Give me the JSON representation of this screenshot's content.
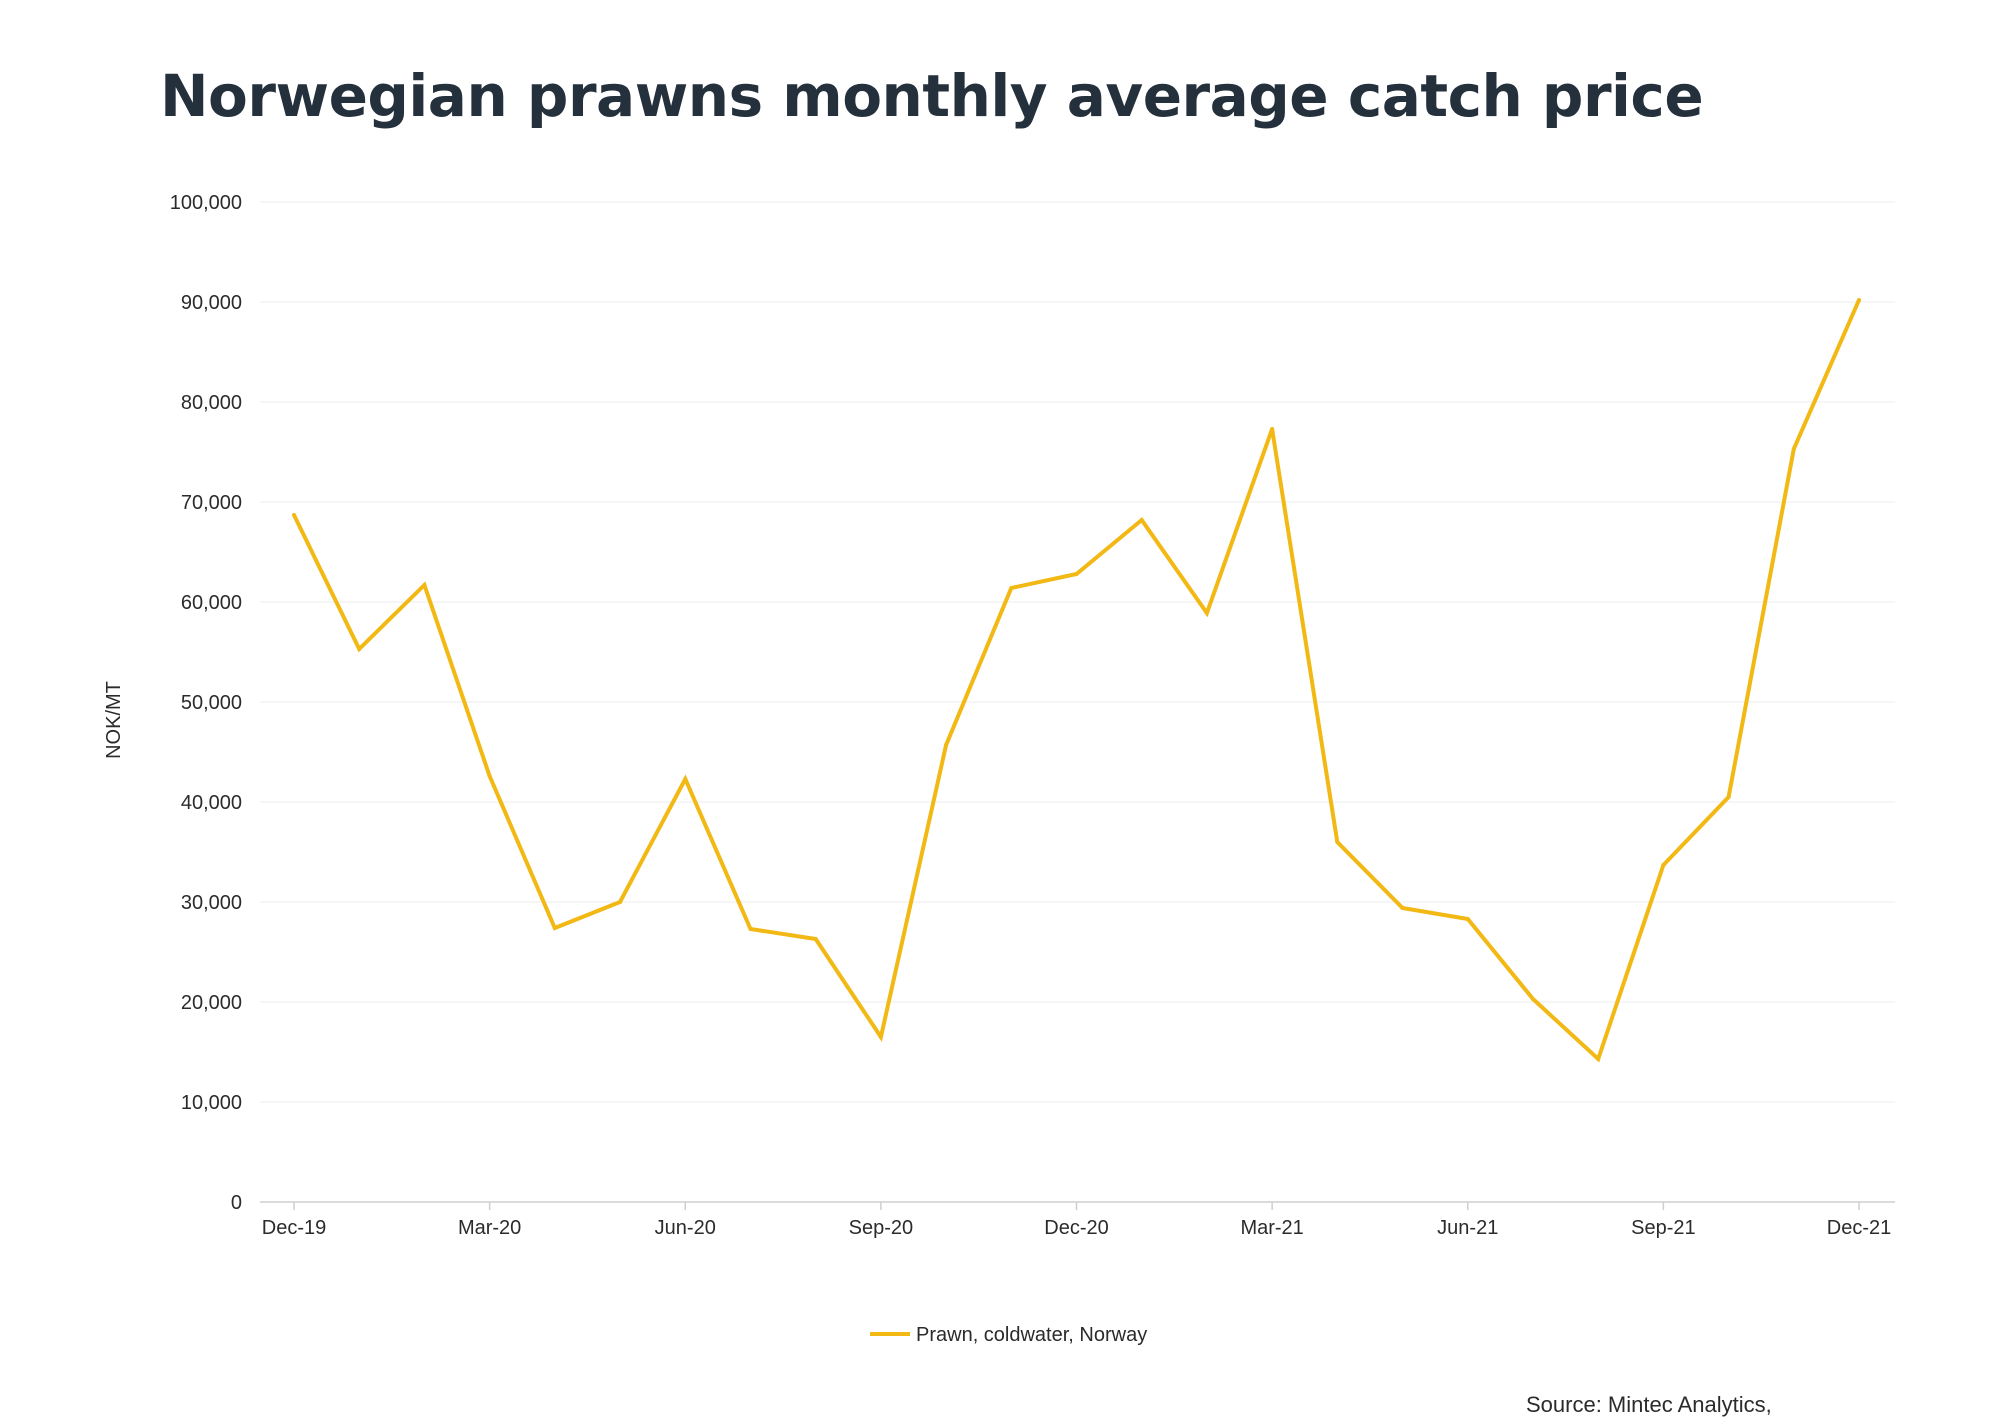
{
  "chart_data": {
    "type": "line",
    "title": "Norwegian prawns monthly average catch price",
    "ylabel": "NOK/MT",
    "xlabel": "",
    "ylim": [
      0,
      100000
    ],
    "yticks": [
      0,
      10000,
      20000,
      30000,
      40000,
      50000,
      60000,
      70000,
      80000,
      90000,
      100000
    ],
    "ytick_labels": [
      "0",
      "10,000",
      "20,000",
      "30,000",
      "40,000",
      "50,000",
      "60,000",
      "70,000",
      "80,000",
      "90,000",
      "100,000"
    ],
    "x": [
      "Dec-19",
      "Jan-20",
      "Feb-20",
      "Mar-20",
      "Apr-20",
      "May-20",
      "Jun-20",
      "Jul-20",
      "Aug-20",
      "Sep-20",
      "Oct-20",
      "Nov-20",
      "Dec-20",
      "Jan-21",
      "Feb-21",
      "Mar-21",
      "Apr-21",
      "May-21",
      "Jun-21",
      "Jul-21",
      "Aug-21",
      "Sep-21",
      "Oct-21",
      "Nov-21",
      "Dec-21"
    ],
    "xtick_labels": [
      "Dec-19",
      "Mar-20",
      "Jun-20",
      "Sep-20",
      "Dec-20",
      "Mar-21",
      "Jun-21",
      "Sep-21",
      "Dec-21"
    ],
    "grid": true,
    "legend": "bottom-center",
    "series": [
      {
        "name": "Prawn, coldwater, Norway",
        "color": "#f2b814",
        "values": [
          68700,
          55300,
          61700,
          42600,
          27400,
          30000,
          42300,
          27300,
          26300,
          16500,
          45700,
          61400,
          62800,
          68200,
          58900,
          77300,
          36000,
          29400,
          28300,
          20300,
          14300,
          33700,
          40500,
          75300,
          90200
        ]
      }
    ]
  },
  "source": "Source: Mintec Analytics,"
}
